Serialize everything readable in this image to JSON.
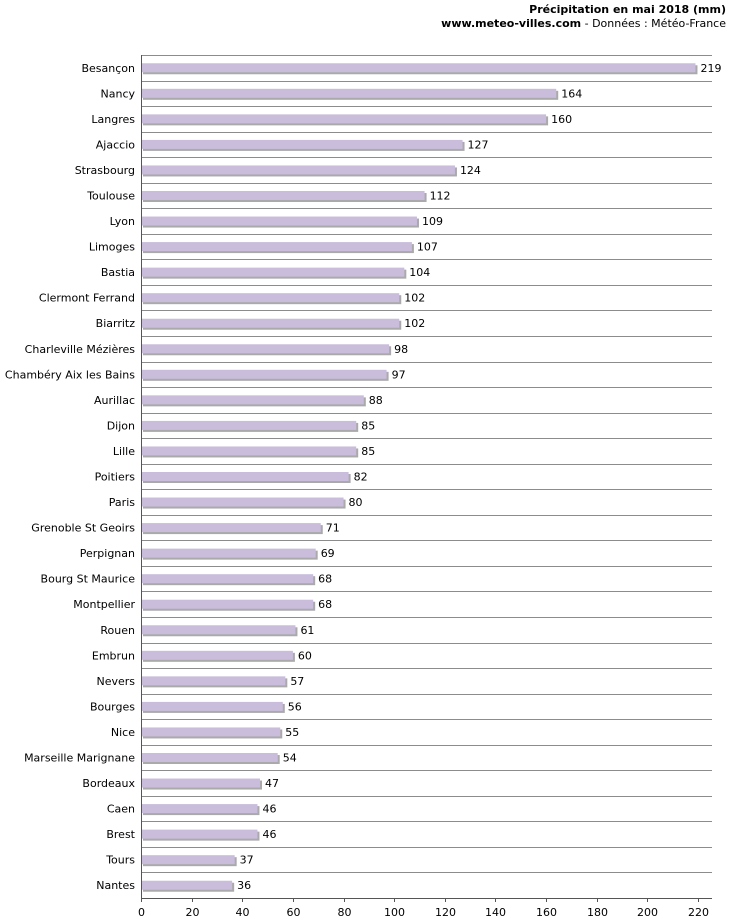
{
  "chart_data": {
    "type": "bar",
    "orientation": "horizontal",
    "title": "Précipitation en mai 2018 (mm)",
    "subtitle_site": "www.meteo-villes.com",
    "subtitle_rest": " - Données : Météo-France",
    "categories": [
      "Besançon",
      "Nancy",
      "Langres",
      "Ajaccio",
      "Strasbourg",
      "Toulouse",
      "Lyon",
      "Limoges",
      "Bastia",
      "Clermont Ferrand",
      "Biarritz",
      "Charleville Mézières",
      "Chambéry Aix les Bains",
      "Aurillac",
      "Dijon",
      "Lille",
      "Poitiers",
      "Paris",
      "Grenoble St Geoirs",
      "Perpignan",
      "Bourg St Maurice",
      "Montpellier",
      "Rouen",
      "Embrun",
      "Nevers",
      "Bourges",
      "Nice",
      "Marseille Marignane",
      "Bordeaux",
      "Caen",
      "Brest",
      "Tours",
      "Nantes"
    ],
    "values": [
      219,
      164,
      160,
      127,
      124,
      112,
      109,
      107,
      104,
      102,
      102,
      98,
      97,
      88,
      85,
      85,
      82,
      80,
      71,
      69,
      68,
      68,
      61,
      60,
      57,
      56,
      55,
      54,
      47,
      46,
      46,
      37,
      36
    ],
    "xlim": [
      0,
      220
    ],
    "xticks": [
      0,
      20,
      40,
      60,
      80,
      100,
      120,
      140,
      160,
      180,
      200,
      220
    ],
    "xlabel": "",
    "ylabel": "",
    "grid": "horizontal row separators",
    "colors": {
      "bar": "#c9bddb",
      "bar_shadow": "#aaaaaa",
      "grid": "#8c8c8c",
      "axis": "#555555"
    }
  }
}
